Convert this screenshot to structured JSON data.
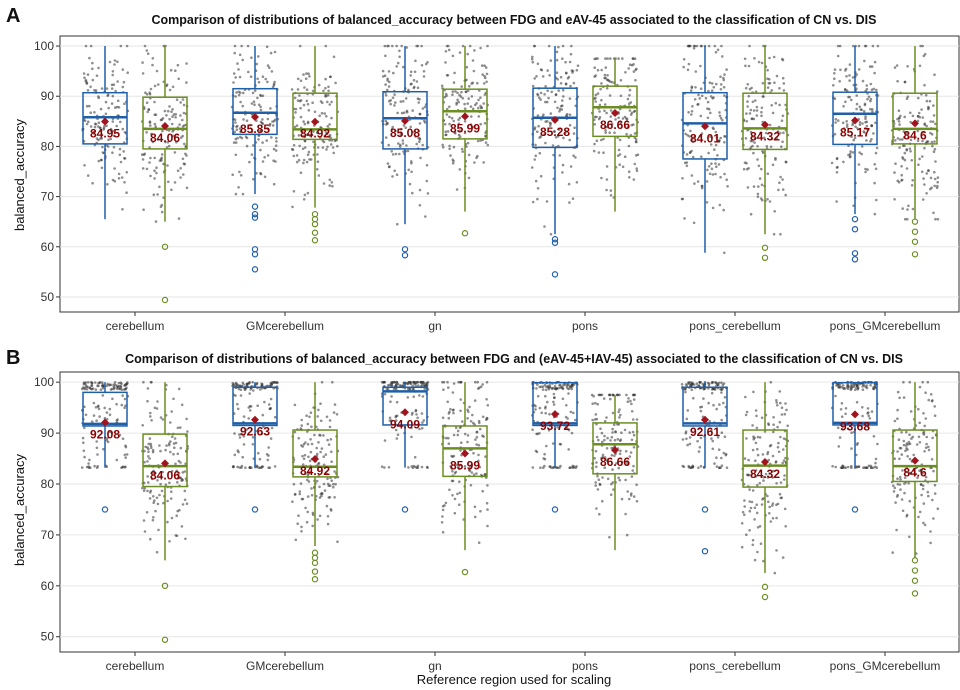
{
  "colors": {
    "fdg": "#1f5fa8",
    "eav": "#6b8e23",
    "mean": "#a0141e",
    "points": "#333333",
    "grid": "#e6e6e6"
  },
  "xlabel": "Reference region used for scaling",
  "chart_data": [
    {
      "panel": "A",
      "type": "box",
      "title": "Comparison of distributions of balanced_accuracy between FDG and eAV-45 associated to the classification of CN vs. DIS",
      "ylabel": "balanced_accuracy",
      "ylim": [
        47,
        102
      ],
      "yticks": [
        50,
        60,
        70,
        80,
        90,
        100
      ],
      "categories": [
        "cerebellum",
        "GMcerebellum",
        "gn",
        "pons",
        "pons_cerebellum",
        "pons_GMcerebellum"
      ],
      "series": [
        {
          "boxes": [
            {
              "q1": 80.5,
              "median": 85.8,
              "q3": 90.7,
              "lo": 65.5,
              "hi": 100,
              "mean": 84.95,
              "mean_label": "84.95",
              "outliers": []
            },
            {
              "q1": 82.4,
              "median": 86.7,
              "q3": 91.5,
              "lo": 70.5,
              "hi": 100,
              "mean": 85.85,
              "mean_label": "85.85",
              "outliers": [
                68,
                66.5,
                65.8,
                59.5,
                58.5,
                55.5
              ]
            },
            {
              "q1": 79.5,
              "median": 85.6,
              "q3": 90.9,
              "lo": 64.5,
              "hi": 100,
              "mean": 85.08,
              "mean_label": "85.08",
              "outliers": [
                59.5,
                58.3
              ]
            },
            {
              "q1": 79.8,
              "median": 85.7,
              "q3": 91.6,
              "lo": 62.5,
              "hi": 100,
              "mean": 85.28,
              "mean_label": "85.28",
              "outliers": [
                61.5,
                60.8,
                54.5
              ]
            },
            {
              "q1": 77.5,
              "median": 84.6,
              "q3": 90.7,
              "lo": 58.8,
              "hi": 100,
              "mean": 84.01,
              "mean_label": "84.01",
              "outliers": []
            },
            {
              "q1": 80.4,
              "median": 86.5,
              "q3": 90.8,
              "lo": 66.5,
              "hi": 100,
              "mean": 85.17,
              "mean_label": "85.17",
              "outliers": [
                65.5,
                63.5,
                58.7,
                57.5
              ]
            }
          ]
        },
        {
          "boxes": [
            {
              "q1": 79.5,
              "median": 83.5,
              "q3": 89.8,
              "lo": 65,
              "hi": 100,
              "mean": 84.06,
              "mean_label": "84.06",
              "outliers": [
                60,
                49.4
              ]
            },
            {
              "q1": 81.4,
              "median": 83.4,
              "q3": 90.6,
              "lo": 67.8,
              "hi": 100,
              "mean": 84.92,
              "mean_label": "84.92",
              "outliers": [
                66.5,
                65.5,
                64.5,
                62.8,
                61.3
              ]
            },
            {
              "q1": 81.5,
              "median": 87.0,
              "q3": 91.4,
              "lo": 67,
              "hi": 100,
              "mean": 85.99,
              "mean_label": "85.99",
              "outliers": [
                62.7
              ]
            },
            {
              "q1": 82.0,
              "median": 87.8,
              "q3": 92.0,
              "lo": 67,
              "hi": 97.5,
              "mean": 86.66,
              "mean_label": "86.66",
              "outliers": []
            },
            {
              "q1": 79.4,
              "median": 83.6,
              "q3": 90.6,
              "lo": 62.5,
              "hi": 100,
              "mean": 84.32,
              "mean_label": "84.32",
              "outliers": [
                59.8,
                57.8
              ]
            },
            {
              "q1": 80.5,
              "median": 83.5,
              "q3": 90.6,
              "lo": 65.5,
              "hi": 100,
              "mean": 84.6,
              "mean_label": "84.6",
              "outliers": [
                65,
                63,
                61,
                58.5
              ]
            }
          ]
        }
      ]
    },
    {
      "panel": "B",
      "type": "box",
      "title": "Comparison of distributions of balanced_accuracy between FDG and (eAV-45+IAV-45) associated to the classification of CN vs. DIS",
      "ylabel": "balanced_accuracy",
      "ylim": [
        47,
        102
      ],
      "yticks": [
        50,
        60,
        70,
        80,
        90,
        100
      ],
      "categories": [
        "cerebellum",
        "GMcerebellum",
        "gn",
        "pons",
        "pons_cerebellum",
        "pons_GMcerebellum"
      ],
      "series": [
        {
          "boxes": [
            {
              "q1": 91.4,
              "median": 91.8,
              "q3": 98.0,
              "lo": 83.2,
              "hi": 100,
              "mean": 92.08,
              "mean_label": "92.08",
              "outliers": [
                75
              ]
            },
            {
              "q1": 91.5,
              "median": 91.9,
              "q3": 99.0,
              "lo": 83.2,
              "hi": 100,
              "mean": 92.63,
              "mean_label": "92.63",
              "outliers": [
                75
              ]
            },
            {
              "q1": 91.6,
              "median": 98.2,
              "q3": 99.0,
              "lo": 83.2,
              "hi": 100,
              "mean": 94.09,
              "mean_label": "94.09",
              "outliers": [
                75
              ]
            },
            {
              "q1": 91.5,
              "median": 91.9,
              "q3": 99.9,
              "lo": 83.2,
              "hi": 100,
              "mean": 93.72,
              "mean_label": "93.72",
              "outliers": [
                75
              ]
            },
            {
              "q1": 91.4,
              "median": 91.9,
              "q3": 99.0,
              "lo": 83.2,
              "hi": 100,
              "mean": 92.61,
              "mean_label": "92.61",
              "outliers": [
                75,
                66.8
              ]
            },
            {
              "q1": 91.6,
              "median": 92.0,
              "q3": 99.9,
              "lo": 83.2,
              "hi": 100,
              "mean": 93.68,
              "mean_label": "93.68",
              "outliers": [
                75
              ]
            }
          ]
        },
        {
          "boxes": [
            {
              "q1": 79.5,
              "median": 83.5,
              "q3": 89.8,
              "lo": 65,
              "hi": 100,
              "mean": 84.06,
              "mean_label": "84.06",
              "outliers": [
                60,
                49.4
              ]
            },
            {
              "q1": 81.4,
              "median": 83.4,
              "q3": 90.6,
              "lo": 67.8,
              "hi": 100,
              "mean": 84.92,
              "mean_label": "84.92",
              "outliers": [
                66.5,
                65.5,
                64.5,
                62.8,
                61.3
              ]
            },
            {
              "q1": 81.5,
              "median": 87.0,
              "q3": 91.4,
              "lo": 67,
              "hi": 100,
              "mean": 85.99,
              "mean_label": "85.99",
              "outliers": [
                62.7
              ]
            },
            {
              "q1": 82.0,
              "median": 87.8,
              "q3": 92.0,
              "lo": 67,
              "hi": 97.5,
              "mean": 86.66,
              "mean_label": "86.66",
              "outliers": []
            },
            {
              "q1": 79.4,
              "median": 83.6,
              "q3": 90.6,
              "lo": 62.5,
              "hi": 100,
              "mean": 84.32,
              "mean_label": "84.32",
              "outliers": [
                59.8,
                57.8
              ]
            },
            {
              "q1": 80.5,
              "median": 83.5,
              "q3": 90.6,
              "lo": 65.5,
              "hi": 100,
              "mean": 84.6,
              "mean_label": "84.6",
              "outliers": [
                65,
                63,
                61,
                58.5
              ]
            }
          ]
        }
      ]
    }
  ]
}
